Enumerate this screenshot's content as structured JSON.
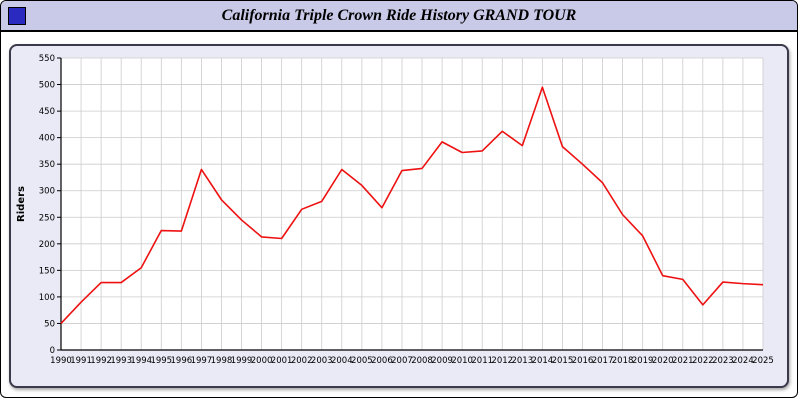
{
  "header": {
    "title": "California Triple Crown Ride History GRAND TOUR",
    "icon": "app-window-icon",
    "icon_color": "#2a2ac0",
    "bar_color": "#c9c9e8"
  },
  "chart_data": {
    "type": "line",
    "title": "California Triple Crown Ride History GRAND TOUR",
    "xlabel": "",
    "ylabel": "Riders",
    "ylim": [
      0,
      550
    ],
    "ytick_step": 50,
    "grid": true,
    "legend_position": "none",
    "plot_bg": "#ffffff",
    "grid_color": "#cccccc",
    "axis_color": "#000000",
    "x": [
      1990,
      1991,
      1992,
      1993,
      1994,
      1995,
      1996,
      1997,
      1998,
      1999,
      2000,
      2001,
      2002,
      2003,
      2004,
      2005,
      2006,
      2007,
      2008,
      2009,
      2010,
      2011,
      2012,
      2013,
      2014,
      2015,
      2016,
      2017,
      2018,
      2019,
      2020,
      2021,
      2022,
      2023,
      2024,
      2025
    ],
    "series": [
      {
        "name": "Riders",
        "color": "#ee1111",
        "values": [
          50,
          90,
          127,
          127,
          155,
          225,
          224,
          340,
          283,
          245,
          213,
          210,
          265,
          280,
          340,
          310,
          268,
          338,
          342,
          392,
          372,
          375,
          412,
          385,
          495,
          383,
          350,
          315,
          255,
          215,
          140,
          133,
          85,
          128,
          125,
          123
        ]
      }
    ]
  }
}
